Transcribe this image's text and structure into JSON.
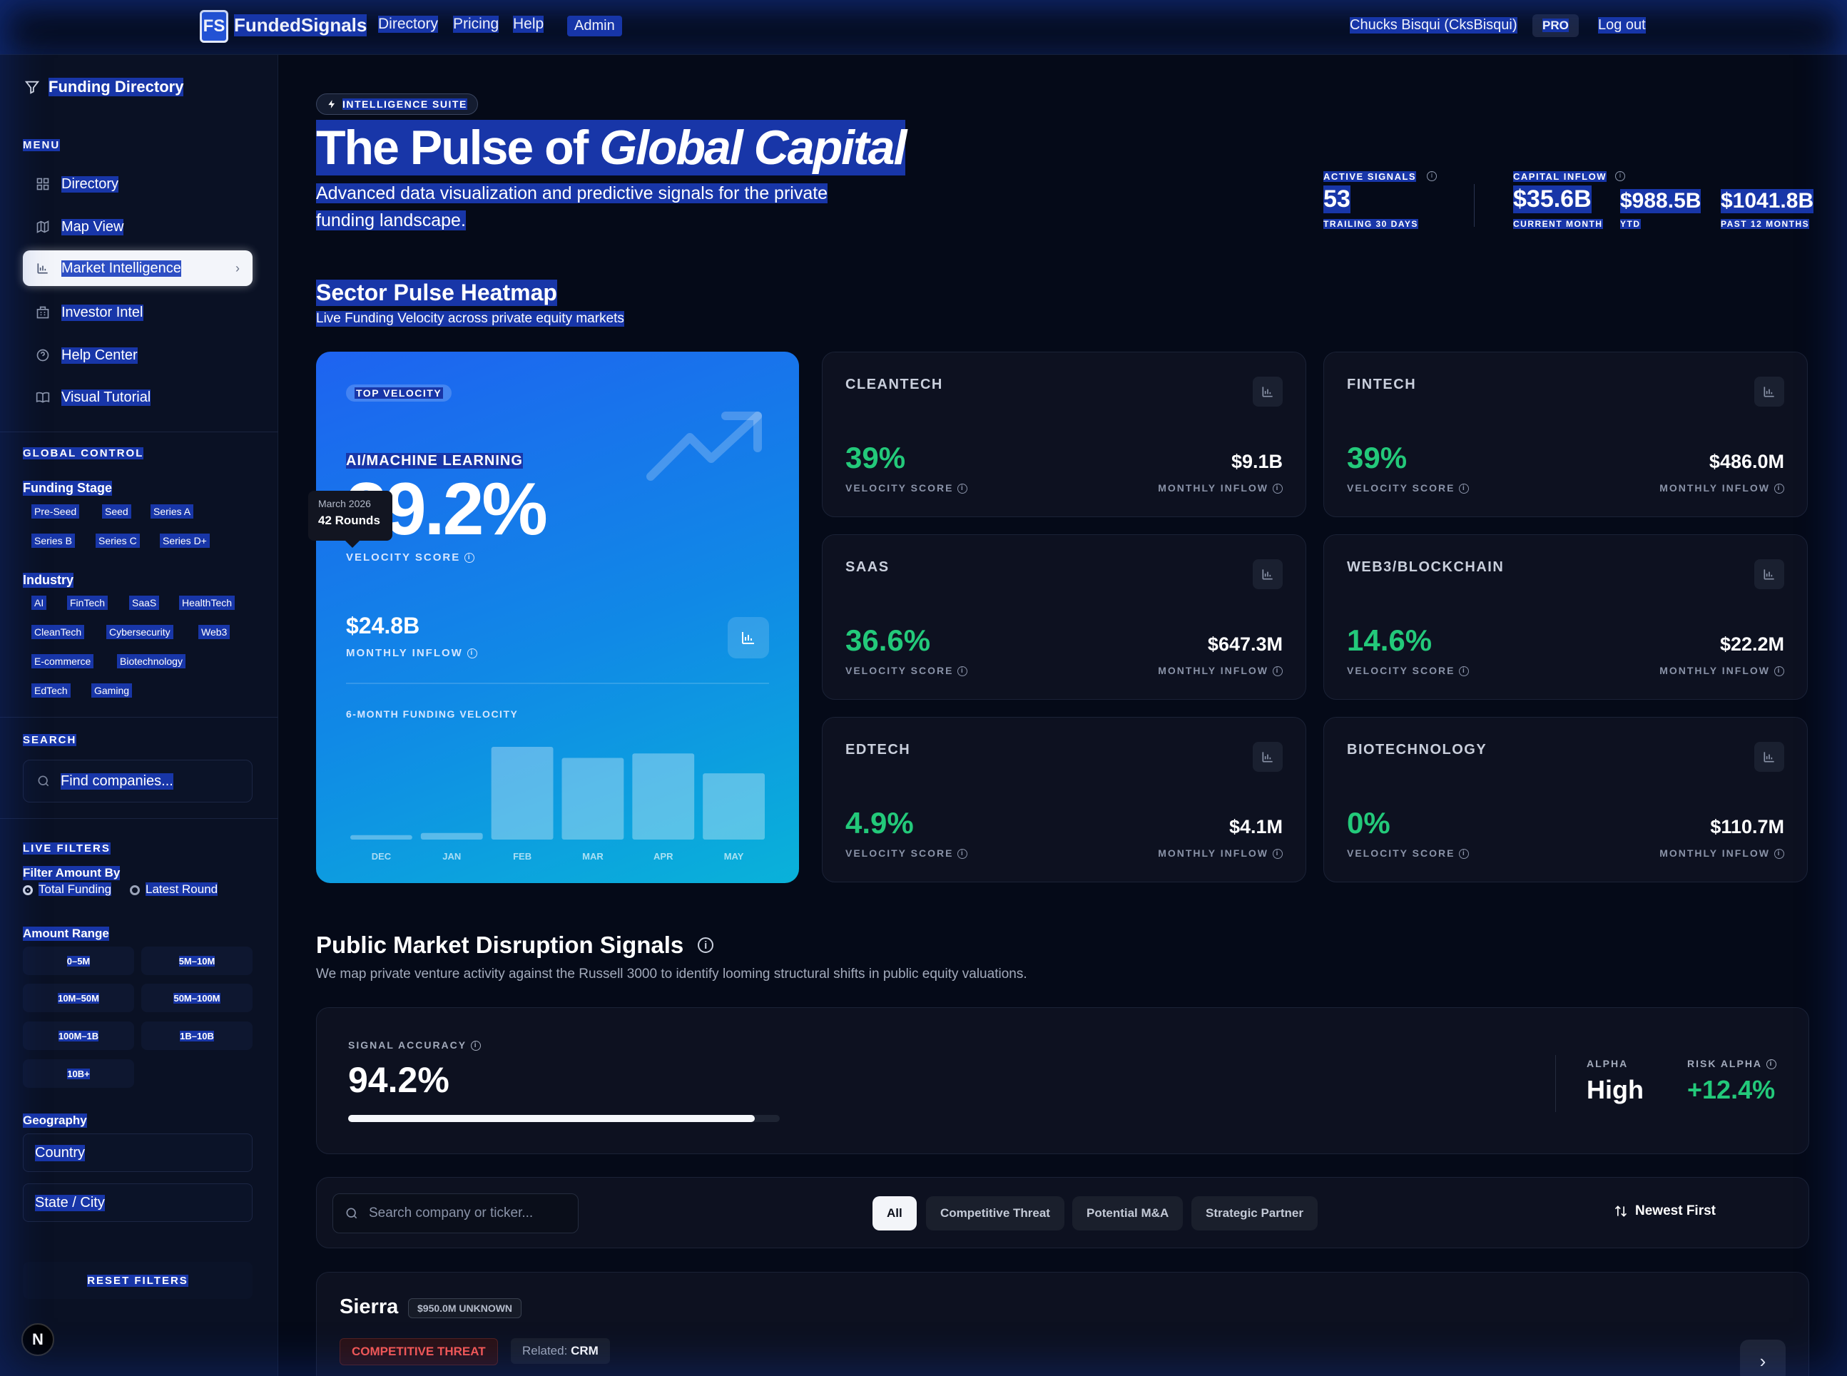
{
  "header": {
    "logo_text": "FS",
    "brand": "FundedSignals",
    "nav": [
      "Directory",
      "Pricing",
      "Help"
    ],
    "admin_label": "Admin",
    "user_name": "Chucks Bisqui (CksBisqui)",
    "plan_badge": "PRO",
    "logout_label": "Log out"
  },
  "sidebar": {
    "title": "Funding Directory",
    "menu_heading": "MENU",
    "menu_items": [
      {
        "label": "Directory",
        "icon": "grid-icon"
      },
      {
        "label": "Map View",
        "icon": "map-icon"
      },
      {
        "label": "Market Intelligence",
        "icon": "bar-chart-icon",
        "active": true
      },
      {
        "label": "Investor Intel",
        "icon": "building-icon"
      },
      {
        "label": "Help Center",
        "icon": "help-circle-icon"
      },
      {
        "label": "Visual Tutorial",
        "icon": "book-icon"
      }
    ],
    "global_heading": "GLOBAL CONTROL",
    "funding_stage_label": "Funding Stage",
    "funding_stages": [
      "Pre-Seed",
      "Seed",
      "Series A",
      "Series B",
      "Series C",
      "Series D+"
    ],
    "industry_label": "Industry",
    "industries": [
      "AI",
      "FinTech",
      "SaaS",
      "HealthTech",
      "CleanTech",
      "Cybersecurity",
      "Web3",
      "E-commerce",
      "Biotechnology",
      "EdTech",
      "Gaming"
    ],
    "search_heading": "SEARCH",
    "search_placeholder": "Find companies...",
    "live_filters_heading": "LIVE FILTERS",
    "filter_amount_label": "Filter Amount By",
    "filter_amount_options": [
      "Total Funding",
      "Latest Round"
    ],
    "amount_range_label": "Amount Range",
    "amount_ranges": [
      "0–5M",
      "5M–10M",
      "10M–50M",
      "50M–100M",
      "100M–1B",
      "1B–10B",
      "10B+"
    ],
    "geography_label": "Geography",
    "country_placeholder": "Country",
    "state_placeholder": "State / City",
    "reset_label": "RESET FILTERS",
    "n_badge": "N"
  },
  "hero": {
    "badge": "INTELLIGENCE SUITE",
    "title_plain": "The Pulse of ",
    "title_italic": "Global Capital",
    "subtitle": "Advanced data visualization and predictive signals for the private funding landscape."
  },
  "kpis": {
    "active_signals_label": "ACTIVE SIGNALS",
    "active_signals_value": "53",
    "active_signals_caption": "TRAILING 30 DAYS",
    "capital_inflow_label": "CAPITAL INFLOW",
    "current_month_value": "$35.6B",
    "current_month_caption": "CURRENT MONTH",
    "ytd_value": "$988.5B",
    "ytd_caption": "YTD",
    "past12_value": "$1041.8B",
    "past12_caption": "PAST 12 MONTHS"
  },
  "heatmap": {
    "title": "Sector Pulse Heatmap",
    "subtitle": "Live Funding Velocity across private equity markets",
    "featured": {
      "badge": "TOP VELOCITY",
      "sector": "AI/MACHINE LEARNING",
      "velocity": "39.2%",
      "velocity_label": "VELOCITY SCORE",
      "inflow": "$24.8B",
      "inflow_label": "MONTHLY INFLOW",
      "chart_title": "6-MONTH FUNDING VELOCITY",
      "tooltip_month": "March 2026",
      "tooltip_rounds": "42 Rounds"
    },
    "sectors": [
      {
        "name": "CLEANTECH",
        "velocity": "39%",
        "inflow": "$9.1B"
      },
      {
        "name": "FINTECH",
        "velocity": "39%",
        "inflow": "$486.0M"
      },
      {
        "name": "SAAS",
        "velocity": "36.6%",
        "inflow": "$647.3M"
      },
      {
        "name": "WEB3/BLOCKCHAIN",
        "velocity": "14.6%",
        "inflow": "$22.2M"
      },
      {
        "name": "EDTECH",
        "velocity": "4.9%",
        "inflow": "$4.1M"
      },
      {
        "name": "BIOTECHNOLOGY",
        "velocity": "0%",
        "inflow": "$110.7M"
      }
    ],
    "velocity_label": "VELOCITY SCORE",
    "inflow_label": "MONTHLY INFLOW"
  },
  "chart_data": {
    "type": "bar",
    "title": "6-MONTH FUNDING VELOCITY",
    "categories": [
      "DEC",
      "JAN",
      "FEB",
      "MAR",
      "APR",
      "MAY"
    ],
    "values": [
      2,
      3,
      42,
      37,
      39,
      30
    ],
    "ylim": [
      0,
      42
    ],
    "grid": false
  },
  "public_signals": {
    "title": "Public Market Disruption Signals",
    "subtitle": "We map private venture activity against the Russell 3000 to identify looming structural shifts in public equity valuations.",
    "accuracy_label": "SIGNAL ACCURACY",
    "accuracy_value": "94.2%",
    "accuracy_fraction": 0.942,
    "alpha_label": "ALPHA",
    "alpha_value": "High",
    "risk_alpha_label": "RISK ALPHA",
    "risk_alpha_value": "+12.4%",
    "risk_alpha_color": "#23c97a",
    "ticker_placeholder": "Search company or ticker...",
    "filters": [
      "All",
      "Competitive Threat",
      "Potential M&A",
      "Strategic Partner"
    ],
    "sort_label": "Newest First"
  },
  "company": {
    "name": "Sierra",
    "amount_badge": "$950.0M UNKNOWN",
    "tag": "COMPETITIVE THREAT",
    "related_prefix": "Related:",
    "related_value": "CRM"
  }
}
